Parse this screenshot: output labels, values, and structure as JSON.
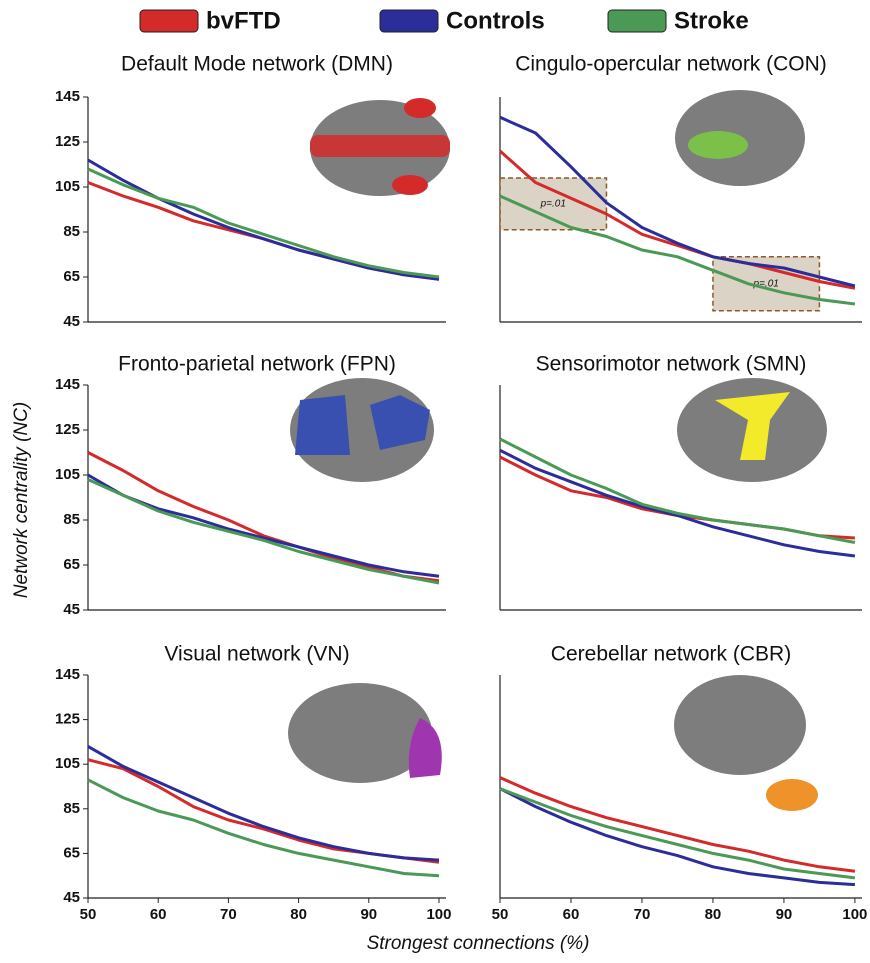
{
  "xlabel": "Strongest connections (%)",
  "ylabel": "Network centrality (NC)",
  "chart_data": [
    {
      "type": "line",
      "title": "Default Mode network (DMN)",
      "x": [
        50,
        55,
        60,
        65,
        70,
        75,
        80,
        85,
        90,
        95,
        100
      ],
      "xlim": [
        50,
        101
      ],
      "ylim": [
        45,
        145
      ],
      "yticks": [
        45,
        65,
        85,
        105,
        125,
        145
      ],
      "series": [
        {
          "name": "bvFTD",
          "color": "#d42a2a",
          "values": [
            107,
            101,
            96,
            90,
            86,
            82,
            77,
            73,
            69,
            66,
            64
          ]
        },
        {
          "name": "Controls",
          "color": "#2b2d9a",
          "values": [
            117,
            108,
            100,
            93,
            87,
            82,
            77,
            73,
            69,
            66,
            64
          ]
        },
        {
          "name": "Stroke",
          "color": "#4a9a55",
          "values": [
            113,
            106,
            100,
            96,
            89,
            84,
            79,
            74,
            70,
            67,
            65
          ]
        }
      ]
    },
    {
      "type": "line",
      "title": "Cingulo-opercular network (CON)",
      "x": [
        50,
        55,
        60,
        65,
        70,
        75,
        80,
        85,
        90,
        95,
        100
      ],
      "xlim": [
        50,
        101
      ],
      "ylim": [
        45,
        145
      ],
      "series": [
        {
          "name": "bvFTD",
          "color": "#d42a2a",
          "values": [
            121,
            107,
            100,
            93,
            84,
            79,
            74,
            71,
            67,
            63,
            60
          ]
        },
        {
          "name": "Controls",
          "color": "#2b2d9a",
          "values": [
            136,
            129,
            114,
            98,
            87,
            80,
            74,
            71,
            69,
            65,
            61
          ]
        },
        {
          "name": "Stroke",
          "color": "#4a9a55",
          "values": [
            101,
            94,
            87,
            83,
            77,
            74,
            68,
            62,
            58,
            55,
            53
          ]
        }
      ],
      "annotations": [
        {
          "text": "p=.01",
          "xrange": [
            50,
            65
          ],
          "yrange": [
            86,
            109
          ]
        },
        {
          "text": "p=.01",
          "xrange": [
            80,
            95
          ],
          "yrange": [
            50,
            74
          ]
        }
      ]
    },
    {
      "type": "line",
      "title": "Fronto-parietal network (FPN)",
      "x": [
        50,
        55,
        60,
        65,
        70,
        75,
        80,
        85,
        90,
        95,
        100
      ],
      "xlim": [
        50,
        101
      ],
      "ylim": [
        45,
        145
      ],
      "yticks": [
        45,
        65,
        85,
        105,
        125,
        145
      ],
      "series": [
        {
          "name": "bvFTD",
          "color": "#d42a2a",
          "values": [
            115,
            107,
            98,
            91,
            85,
            78,
            73,
            68,
            64,
            60,
            58
          ]
        },
        {
          "name": "Controls",
          "color": "#2b2d9a",
          "values": [
            105,
            96,
            90,
            86,
            81,
            77,
            73,
            69,
            65,
            62,
            60
          ]
        },
        {
          "name": "Stroke",
          "color": "#4a9a55",
          "values": [
            103,
            96,
            89,
            84,
            80,
            76,
            71,
            67,
            63,
            60,
            57
          ]
        }
      ]
    },
    {
      "type": "line",
      "title": "Sensorimotor network (SMN)",
      "x": [
        50,
        55,
        60,
        65,
        70,
        75,
        80,
        85,
        90,
        95,
        100
      ],
      "xlim": [
        50,
        101
      ],
      "ylim": [
        45,
        145
      ],
      "series": [
        {
          "name": "bvFTD",
          "color": "#d42a2a",
          "values": [
            113,
            105,
            98,
            95,
            90,
            87,
            85,
            83,
            81,
            78,
            77
          ]
        },
        {
          "name": "Controls",
          "color": "#2b2d9a",
          "values": [
            116,
            108,
            102,
            96,
            91,
            87,
            82,
            78,
            74,
            71,
            69
          ]
        },
        {
          "name": "Stroke",
          "color": "#4a9a55",
          "values": [
            121,
            113,
            105,
            99,
            92,
            88,
            85,
            83,
            81,
            78,
            75
          ]
        }
      ]
    },
    {
      "type": "line",
      "title": "Visual network (VN)",
      "x": [
        50,
        55,
        60,
        65,
        70,
        75,
        80,
        85,
        90,
        95,
        100
      ],
      "xlim": [
        50,
        101
      ],
      "ylim": [
        45,
        145
      ],
      "yticks": [
        45,
        65,
        85,
        105,
        125,
        145
      ],
      "xticks": [
        50,
        60,
        70,
        80,
        90,
        100
      ],
      "series": [
        {
          "name": "bvFTD",
          "color": "#d42a2a",
          "values": [
            107,
            103,
            95,
            86,
            80,
            76,
            71,
            67,
            65,
            63,
            61
          ]
        },
        {
          "name": "Controls",
          "color": "#2b2d9a",
          "values": [
            113,
            104,
            97,
            90,
            83,
            77,
            72,
            68,
            65,
            63,
            62
          ]
        },
        {
          "name": "Stroke",
          "color": "#4a9a55",
          "values": [
            98,
            90,
            84,
            80,
            74,
            69,
            65,
            62,
            59,
            56,
            55
          ]
        }
      ]
    },
    {
      "type": "line",
      "title": "Cerebellar network (CBR)",
      "x": [
        50,
        55,
        60,
        65,
        70,
        75,
        80,
        85,
        90,
        95,
        100
      ],
      "xlim": [
        50,
        101
      ],
      "ylim": [
        45,
        145
      ],
      "xticks": [
        50,
        60,
        70,
        80,
        90,
        100
      ],
      "series": [
        {
          "name": "bvFTD",
          "color": "#d42a2a",
          "values": [
            99,
            92,
            86,
            81,
            77,
            73,
            69,
            66,
            62,
            59,
            57
          ]
        },
        {
          "name": "Controls",
          "color": "#2b2d9a",
          "values": [
            94,
            86,
            79,
            73,
            68,
            64,
            59,
            56,
            54,
            52,
            51
          ]
        },
        {
          "name": "Stroke",
          "color": "#4a9a55",
          "values": [
            94,
            88,
            82,
            77,
            73,
            69,
            65,
            62,
            58,
            56,
            54
          ]
        }
      ]
    }
  ]
}
